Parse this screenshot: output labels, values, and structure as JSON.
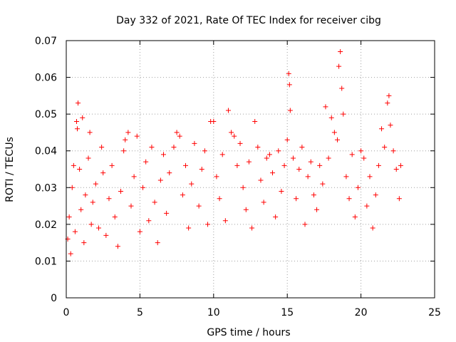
{
  "chart_data": {
    "type": "scatter",
    "title": "Day 332 of 2021, Rate Of TEC Index for receiver cibg",
    "xlabel": "GPS time / hours",
    "ylabel": "ROTI / TECUs",
    "xlim": [
      0,
      25
    ],
    "ylim": [
      0,
      0.07
    ],
    "xticks": [
      "0",
      "5",
      "10",
      "15",
      "20",
      "25"
    ],
    "yticks": [
      "0",
      "0.01",
      "0.02",
      "0.03",
      "0.04",
      "0.05",
      "0.06",
      "0.07"
    ],
    "grid": true,
    "marker": "+",
    "color": "#ff0000",
    "series": [
      {
        "name": "ROTI",
        "points": [
          [
            0.1,
            0.016
          ],
          [
            0.2,
            0.022
          ],
          [
            0.3,
            0.012
          ],
          [
            0.4,
            0.03
          ],
          [
            0.5,
            0.036
          ],
          [
            0.6,
            0.018
          ],
          [
            0.7,
            0.048
          ],
          [
            0.75,
            0.046
          ],
          [
            0.8,
            0.053
          ],
          [
            0.9,
            0.035
          ],
          [
            1.0,
            0.024
          ],
          [
            1.1,
            0.049
          ],
          [
            1.2,
            0.015
          ],
          [
            1.3,
            0.028
          ],
          [
            1.5,
            0.038
          ],
          [
            1.6,
            0.045
          ],
          [
            1.7,
            0.02
          ],
          [
            1.8,
            0.026
          ],
          [
            2.0,
            0.031
          ],
          [
            2.2,
            0.019
          ],
          [
            2.4,
            0.041
          ],
          [
            2.5,
            0.034
          ],
          [
            2.7,
            0.017
          ],
          [
            2.9,
            0.027
          ],
          [
            3.1,
            0.036
          ],
          [
            3.3,
            0.022
          ],
          [
            3.5,
            0.014
          ],
          [
            3.7,
            0.029
          ],
          [
            3.9,
            0.04
          ],
          [
            4.0,
            0.043
          ],
          [
            4.2,
            0.045
          ],
          [
            4.4,
            0.025
          ],
          [
            4.6,
            0.033
          ],
          [
            4.8,
            0.044
          ],
          [
            5.0,
            0.018
          ],
          [
            5.2,
            0.03
          ],
          [
            5.4,
            0.037
          ],
          [
            5.6,
            0.021
          ],
          [
            5.8,
            0.041
          ],
          [
            6.0,
            0.026
          ],
          [
            6.2,
            0.015
          ],
          [
            6.4,
            0.032
          ],
          [
            6.6,
            0.039
          ],
          [
            6.8,
            0.023
          ],
          [
            7.0,
            0.034
          ],
          [
            7.3,
            0.041
          ],
          [
            7.5,
            0.045
          ],
          [
            7.7,
            0.044
          ],
          [
            7.9,
            0.028
          ],
          [
            8.1,
            0.036
          ],
          [
            8.3,
            0.019
          ],
          [
            8.5,
            0.031
          ],
          [
            8.7,
            0.042
          ],
          [
            9.0,
            0.025
          ],
          [
            9.2,
            0.035
          ],
          [
            9.4,
            0.04
          ],
          [
            9.6,
            0.02
          ],
          [
            9.8,
            0.048
          ],
          [
            10.0,
            0.048
          ],
          [
            10.2,
            0.033
          ],
          [
            10.4,
            0.027
          ],
          [
            10.6,
            0.039
          ],
          [
            10.8,
            0.021
          ],
          [
            11.0,
            0.051
          ],
          [
            11.2,
            0.045
          ],
          [
            11.4,
            0.044
          ],
          [
            11.6,
            0.036
          ],
          [
            11.8,
            0.042
          ],
          [
            12.0,
            0.03
          ],
          [
            12.2,
            0.024
          ],
          [
            12.4,
            0.037
          ],
          [
            12.6,
            0.019
          ],
          [
            12.8,
            0.048
          ],
          [
            13.0,
            0.041
          ],
          [
            13.2,
            0.032
          ],
          [
            13.4,
            0.026
          ],
          [
            13.6,
            0.038
          ],
          [
            13.8,
            0.039
          ],
          [
            14.0,
            0.034
          ],
          [
            14.2,
            0.022
          ],
          [
            14.4,
            0.04
          ],
          [
            14.6,
            0.029
          ],
          [
            14.8,
            0.036
          ],
          [
            15.0,
            0.043
          ],
          [
            15.1,
            0.061
          ],
          [
            15.15,
            0.058
          ],
          [
            15.2,
            0.051
          ],
          [
            15.4,
            0.038
          ],
          [
            15.6,
            0.027
          ],
          [
            15.8,
            0.035
          ],
          [
            16.0,
            0.041
          ],
          [
            16.2,
            0.02
          ],
          [
            16.4,
            0.033
          ],
          [
            16.6,
            0.037
          ],
          [
            16.8,
            0.028
          ],
          [
            17.0,
            0.024
          ],
          [
            17.2,
            0.036
          ],
          [
            17.4,
            0.031
          ],
          [
            17.6,
            0.052
          ],
          [
            17.8,
            0.038
          ],
          [
            18.0,
            0.049
          ],
          [
            18.2,
            0.045
          ],
          [
            18.4,
            0.043
          ],
          [
            18.5,
            0.063
          ],
          [
            18.6,
            0.067
          ],
          [
            18.7,
            0.057
          ],
          [
            18.8,
            0.05
          ],
          [
            19.0,
            0.033
          ],
          [
            19.2,
            0.027
          ],
          [
            19.4,
            0.039
          ],
          [
            19.6,
            0.022
          ],
          [
            19.8,
            0.03
          ],
          [
            20.0,
            0.04
          ],
          [
            20.2,
            0.038
          ],
          [
            20.4,
            0.025
          ],
          [
            20.6,
            0.033
          ],
          [
            20.8,
            0.019
          ],
          [
            21.0,
            0.028
          ],
          [
            21.2,
            0.036
          ],
          [
            21.4,
            0.046
          ],
          [
            21.6,
            0.041
          ],
          [
            21.8,
            0.053
          ],
          [
            21.9,
            0.055
          ],
          [
            22.0,
            0.047
          ],
          [
            22.2,
            0.04
          ],
          [
            22.4,
            0.035
          ],
          [
            22.6,
            0.027
          ],
          [
            22.7,
            0.036
          ]
        ]
      }
    ]
  }
}
